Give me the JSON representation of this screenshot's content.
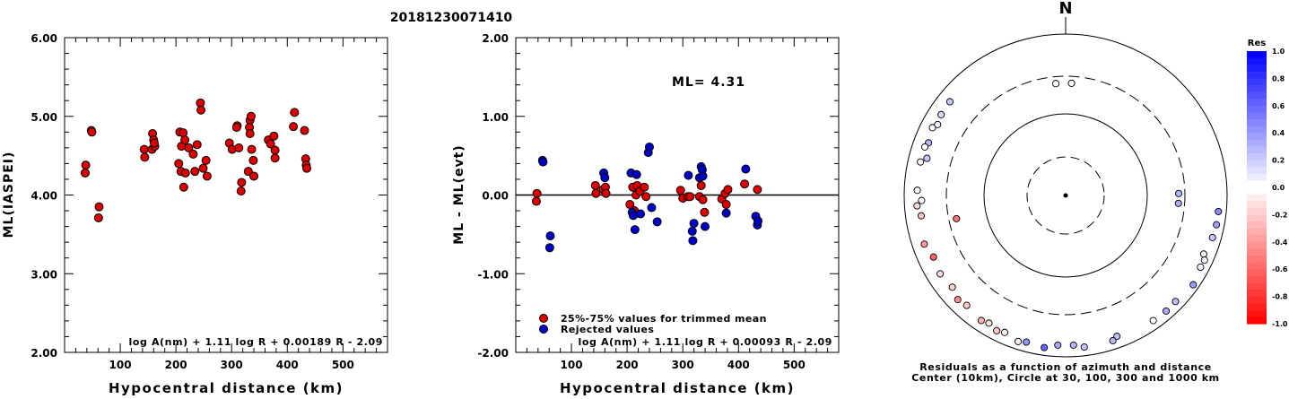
{
  "page_title": "20181230071410",
  "chart_data": [
    {
      "type": "scatter",
      "xlabel": "Hypocentral distance (km)",
      "ylabel": "ML(IASPEI)",
      "xlim": [
        0,
        580
      ],
      "ylim": [
        2.0,
        6.0
      ],
      "xticks": [
        "100",
        "200",
        "300",
        "400",
        "500"
      ],
      "yticks": [
        "2.00",
        "3.00",
        "4.00",
        "5.00",
        "6.00"
      ],
      "formula": "log A(nm) + 1.11 log R + 0.00189 R - 2.09",
      "marker_color": "#dd0000",
      "points": [
        [
          38,
          4.38
        ],
        [
          37,
          4.28
        ],
        [
          48,
          4.82
        ],
        [
          49,
          4.8
        ],
        [
          62,
          3.85
        ],
        [
          61,
          3.71
        ],
        [
          143,
          4.58
        ],
        [
          144,
          4.48
        ],
        [
          158,
          4.78
        ],
        [
          160,
          4.7
        ],
        [
          157,
          4.58
        ],
        [
          162,
          4.62
        ],
        [
          161,
          4.66
        ],
        [
          207,
          4.8
        ],
        [
          213,
          4.79
        ],
        [
          210,
          4.62
        ],
        [
          216,
          4.7
        ],
        [
          205,
          4.4
        ],
        [
          209,
          4.3
        ],
        [
          217,
          4.28
        ],
        [
          214,
          4.1
        ],
        [
          223,
          4.6
        ],
        [
          231,
          4.52
        ],
        [
          234,
          4.3
        ],
        [
          238,
          4.64
        ],
        [
          244,
          5.17
        ],
        [
          245,
          5.08
        ],
        [
          249,
          4.34
        ],
        [
          254,
          4.44
        ],
        [
          256,
          4.24
        ],
        [
          296,
          4.66
        ],
        [
          301,
          4.58
        ],
        [
          310,
          4.88
        ],
        [
          309,
          4.86
        ],
        [
          313,
          4.6
        ],
        [
          318,
          4.16
        ],
        [
          317,
          4.05
        ],
        [
          330,
          4.3
        ],
        [
          333,
          4.95
        ],
        [
          335,
          5.0
        ],
        [
          332,
          4.86
        ],
        [
          333,
          4.78
        ],
        [
          336,
          4.58
        ],
        [
          339,
          4.44
        ],
        [
          340,
          4.24
        ],
        [
          366,
          4.7
        ],
        [
          370,
          4.65
        ],
        [
          376,
          4.75
        ],
        [
          378,
          4.57
        ],
        [
          378,
          4.47
        ],
        [
          413,
          5.05
        ],
        [
          411,
          4.87
        ],
        [
          431,
          4.82
        ],
        [
          433,
          4.46
        ],
        [
          434,
          4.38
        ],
        [
          435,
          4.34
        ]
      ]
    },
    {
      "type": "scatter",
      "xlabel": "Hypocentral distance (km)",
      "ylabel": "ML - ML(evt)",
      "xlim": [
        0,
        580
      ],
      "ylim": [
        -2.0,
        2.0
      ],
      "xticks": [
        "100",
        "200",
        "300",
        "400",
        "500"
      ],
      "yticks": [
        "-2.00",
        "-1.00",
        "0.00",
        "1.00",
        "2.00"
      ],
      "annotation": "ML= 4.31",
      "formula": "log A(nm) + 1.11 log R + 0.00093 R - 2.09",
      "legend": [
        {
          "label": "25%-75% values for trimmed mean",
          "color": "#dd0000"
        },
        {
          "label": "Rejected values",
          "color": "#0000cc"
        }
      ],
      "series": [
        {
          "name": "25%-75% values for trimmed mean",
          "color": "#dd0000",
          "points": [
            [
              38,
              0.02
            ],
            [
              37,
              -0.08
            ],
            [
              143,
              0.12
            ],
            [
              144,
              0.02
            ],
            [
              157,
              0.07
            ],
            [
              161,
              0.1
            ],
            [
              162,
              0.02
            ],
            [
              210,
              0.1
            ],
            [
              216,
              0.0
            ],
            [
              218,
              0.12
            ],
            [
              223,
              0.05
            ],
            [
              205,
              -0.12
            ],
            [
              213,
              -0.2
            ],
            [
              231,
              0.1
            ],
            [
              234,
              -0.02
            ],
            [
              296,
              0.06
            ],
            [
              300,
              -0.04
            ],
            [
              309,
              -0.02
            ],
            [
              313,
              -0.02
            ],
            [
              330,
              -0.02
            ],
            [
              333,
              0.12
            ],
            [
              336,
              -0.06
            ],
            [
              339,
              -0.22
            ],
            [
              370,
              -0.05
            ],
            [
              376,
              0.02
            ],
            [
              378,
              -0.12
            ],
            [
              381,
              0.07
            ],
            [
              411,
              0.14
            ],
            [
              434,
              0.07
            ]
          ]
        },
        {
          "name": "Rejected values",
          "color": "#0000cc",
          "points": [
            [
              48,
              0.44
            ],
            [
              49,
              0.42
            ],
            [
              62,
              -0.52
            ],
            [
              61,
              -0.67
            ],
            [
              158,
              0.28
            ],
            [
              160,
              0.22
            ],
            [
              207,
              0.28
            ],
            [
              209,
              -0.22
            ],
            [
              211,
              -0.26
            ],
            [
              214,
              -0.44
            ],
            [
              217,
              0.26
            ],
            [
              224,
              -0.24
            ],
            [
              238,
              0.54
            ],
            [
              240,
              0.61
            ],
            [
              244,
              -0.16
            ],
            [
              254,
              -0.34
            ],
            [
              310,
              0.25
            ],
            [
              317,
              -0.46
            ],
            [
              318,
              -0.58
            ],
            [
              320,
              -0.36
            ],
            [
              330,
              0.22
            ],
            [
              333,
              0.36
            ],
            [
              335,
              0.32
            ],
            [
              336,
              0.24
            ],
            [
              340,
              -0.4
            ],
            [
              378,
              -0.23
            ],
            [
              413,
              0.33
            ],
            [
              431,
              -0.27
            ],
            [
              434,
              -0.38
            ],
            [
              435,
              -0.33
            ]
          ]
        }
      ]
    },
    {
      "type": "scatter",
      "chart_kind": "polar residual map",
      "north_label": "N",
      "caption_line1": "Residuals as a function of azimuth and distance",
      "caption_line2": "Center (10km), Circle at 30, 100, 300 and 1000 km",
      "colorbar_title": "Res",
      "colorbar_ticks": [
        "1.0",
        "0.8",
        "0.6",
        "0.4",
        "0.2",
        "0.0",
        "-0.2",
        "-0.4",
        "-0.6",
        "-0.8",
        "-1.0"
      ],
      "colorbar_range": [
        -1.0,
        1.0
      ],
      "rings_km": [
        30,
        100,
        300,
        1000
      ],
      "stations": [
        {
          "azimuth": 355,
          "distance": 245,
          "res": 0.0
        },
        {
          "azimuth": 3,
          "distance": 245,
          "res": 0.02
        },
        {
          "azimuth": 89,
          "distance": 250,
          "res": 0.3
        },
        {
          "azimuth": 94,
          "distance": 250,
          "res": 0.32
        },
        {
          "azimuth": 96,
          "distance": 800,
          "res": 0.45
        },
        {
          "azimuth": 101,
          "distance": 800,
          "res": 0.38
        },
        {
          "azimuth": 106,
          "distance": 780,
          "res": 0.22
        },
        {
          "azimuth": 113,
          "distance": 720,
          "res": 0.05
        },
        {
          "azimuth": 115,
          "distance": 790,
          "res": 0.04
        },
        {
          "azimuth": 118,
          "distance": 780,
          "res": 0.03
        },
        {
          "azimuth": 125,
          "distance": 850,
          "res": 0.4
        },
        {
          "azimuth": 134,
          "distance": 780,
          "res": 0.26
        },
        {
          "azimuth": 139,
          "distance": 790,
          "res": 0.32
        },
        {
          "azimuth": 145,
          "distance": 780,
          "res": 0.0
        },
        {
          "azimuth": 160,
          "distance": 720,
          "res": 0.25
        },
        {
          "azimuth": 162,
          "distance": 780,
          "res": 0.28
        },
        {
          "azimuth": 173,
          "distance": 780,
          "res": 0.23
        },
        {
          "azimuth": 177,
          "distance": 720,
          "res": 0.3
        },
        {
          "azimuth": 183,
          "distance": 720,
          "res": 0.34
        },
        {
          "azimuth": 188,
          "distance": 800,
          "res": 0.6
        },
        {
          "azimuth": 195,
          "distance": 760,
          "res": 0.42
        },
        {
          "azimuth": 198,
          "distance": 800,
          "res": 0.05
        },
        {
          "azimuth": 204,
          "distance": 720,
          "res": -0.08
        },
        {
          "azimuth": 207,
          "distance": 760,
          "res": -0.23
        },
        {
          "azimuth": 211,
          "distance": 700,
          "res": -0.12
        },
        {
          "azimuth": 214,
          "distance": 740,
          "res": -0.3
        },
        {
          "azimuth": 222,
          "distance": 680,
          "res": -0.22
        },
        {
          "azimuth": 226,
          "distance": 720,
          "res": -0.45
        },
        {
          "azimuth": 231,
          "distance": 640,
          "res": -0.18
        },
        {
          "azimuth": 238,
          "distance": 680,
          "res": -0.15
        },
        {
          "azimuth": 245,
          "distance": 640,
          "res": -0.6
        },
        {
          "azimuth": 251,
          "distance": 710,
          "res": -0.4
        },
        {
          "azimuth": 258,
          "distance": 240,
          "res": -0.55
        },
        {
          "azimuth": 262,
          "distance": 640,
          "res": -0.25
        },
        {
          "azimuth": 266,
          "distance": 700,
          "res": -0.15
        },
        {
          "azimuth": 268,
          "distance": 610,
          "res": 0.0
        },
        {
          "azimuth": 272,
          "distance": 690,
          "res": 0.02
        },
        {
          "azimuth": 283,
          "distance": 700,
          "res": -0.05
        },
        {
          "azimuth": 285,
          "distance": 600,
          "res": 0.22
        },
        {
          "azimuth": 291,
          "distance": 660,
          "res": 0.3
        },
        {
          "azimuth": 289,
          "distance": 700,
          "res": 0.0
        },
        {
          "azimuth": 297,
          "distance": 710,
          "res": 0.0
        },
        {
          "azimuth": 299,
          "distance": 650,
          "res": 0.08
        },
        {
          "azimuth": 303,
          "distance": 690,
          "res": 0.15
        },
        {
          "azimuth": 309,
          "distance": 700,
          "res": 0.22
        }
      ]
    }
  ]
}
